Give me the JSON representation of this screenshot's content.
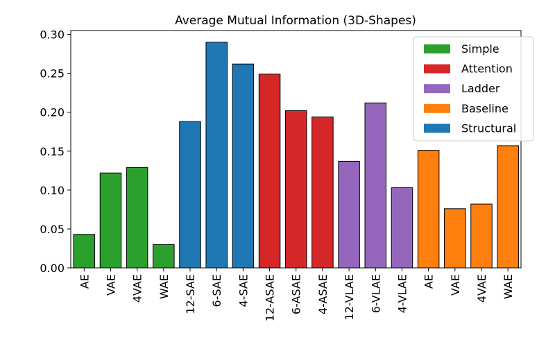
{
  "chart_data": {
    "type": "bar",
    "title": "Average Mutual Information (3D-Shapes)",
    "xlabel": "",
    "ylabel": "",
    "ylim": [
      0,
      0.305
    ],
    "yticks": [
      "0.00",
      "0.05",
      "0.10",
      "0.15",
      "0.20",
      "0.25",
      "0.30"
    ],
    "grid": false,
    "legend_position": "top-right",
    "groups": [
      {
        "name": "Simple",
        "color": "#2ca02c"
      },
      {
        "name": "Attention",
        "color": "#d62728"
      },
      {
        "name": "Ladder",
        "color": "#9467bd"
      },
      {
        "name": "Baseline",
        "color": "#ff7f0e"
      },
      {
        "name": "Structural",
        "color": "#1f77b4"
      }
    ],
    "categories": [
      "AE",
      "VAE",
      "4VAE",
      "WAE",
      "12-SAE",
      "6-SAE",
      "4-SAE",
      "12-ASAE",
      "6-ASAE",
      "4-ASAE",
      "12-VLAE",
      "6-VLAE",
      "4-VLAE",
      "AE",
      "VAE",
      "4VAE",
      "WAE"
    ],
    "values": [
      0.043,
      0.122,
      0.129,
      0.03,
      0.188,
      0.29,
      0.262,
      0.249,
      0.202,
      0.194,
      0.137,
      0.212,
      0.103,
      0.151,
      0.076,
      0.082,
      0.157
    ],
    "bar_groups": [
      "Simple",
      "Simple",
      "Simple",
      "Simple",
      "Structural",
      "Structural",
      "Structural",
      "Attention",
      "Attention",
      "Attention",
      "Ladder",
      "Ladder",
      "Ladder",
      "Baseline",
      "Baseline",
      "Baseline",
      "Baseline"
    ]
  }
}
